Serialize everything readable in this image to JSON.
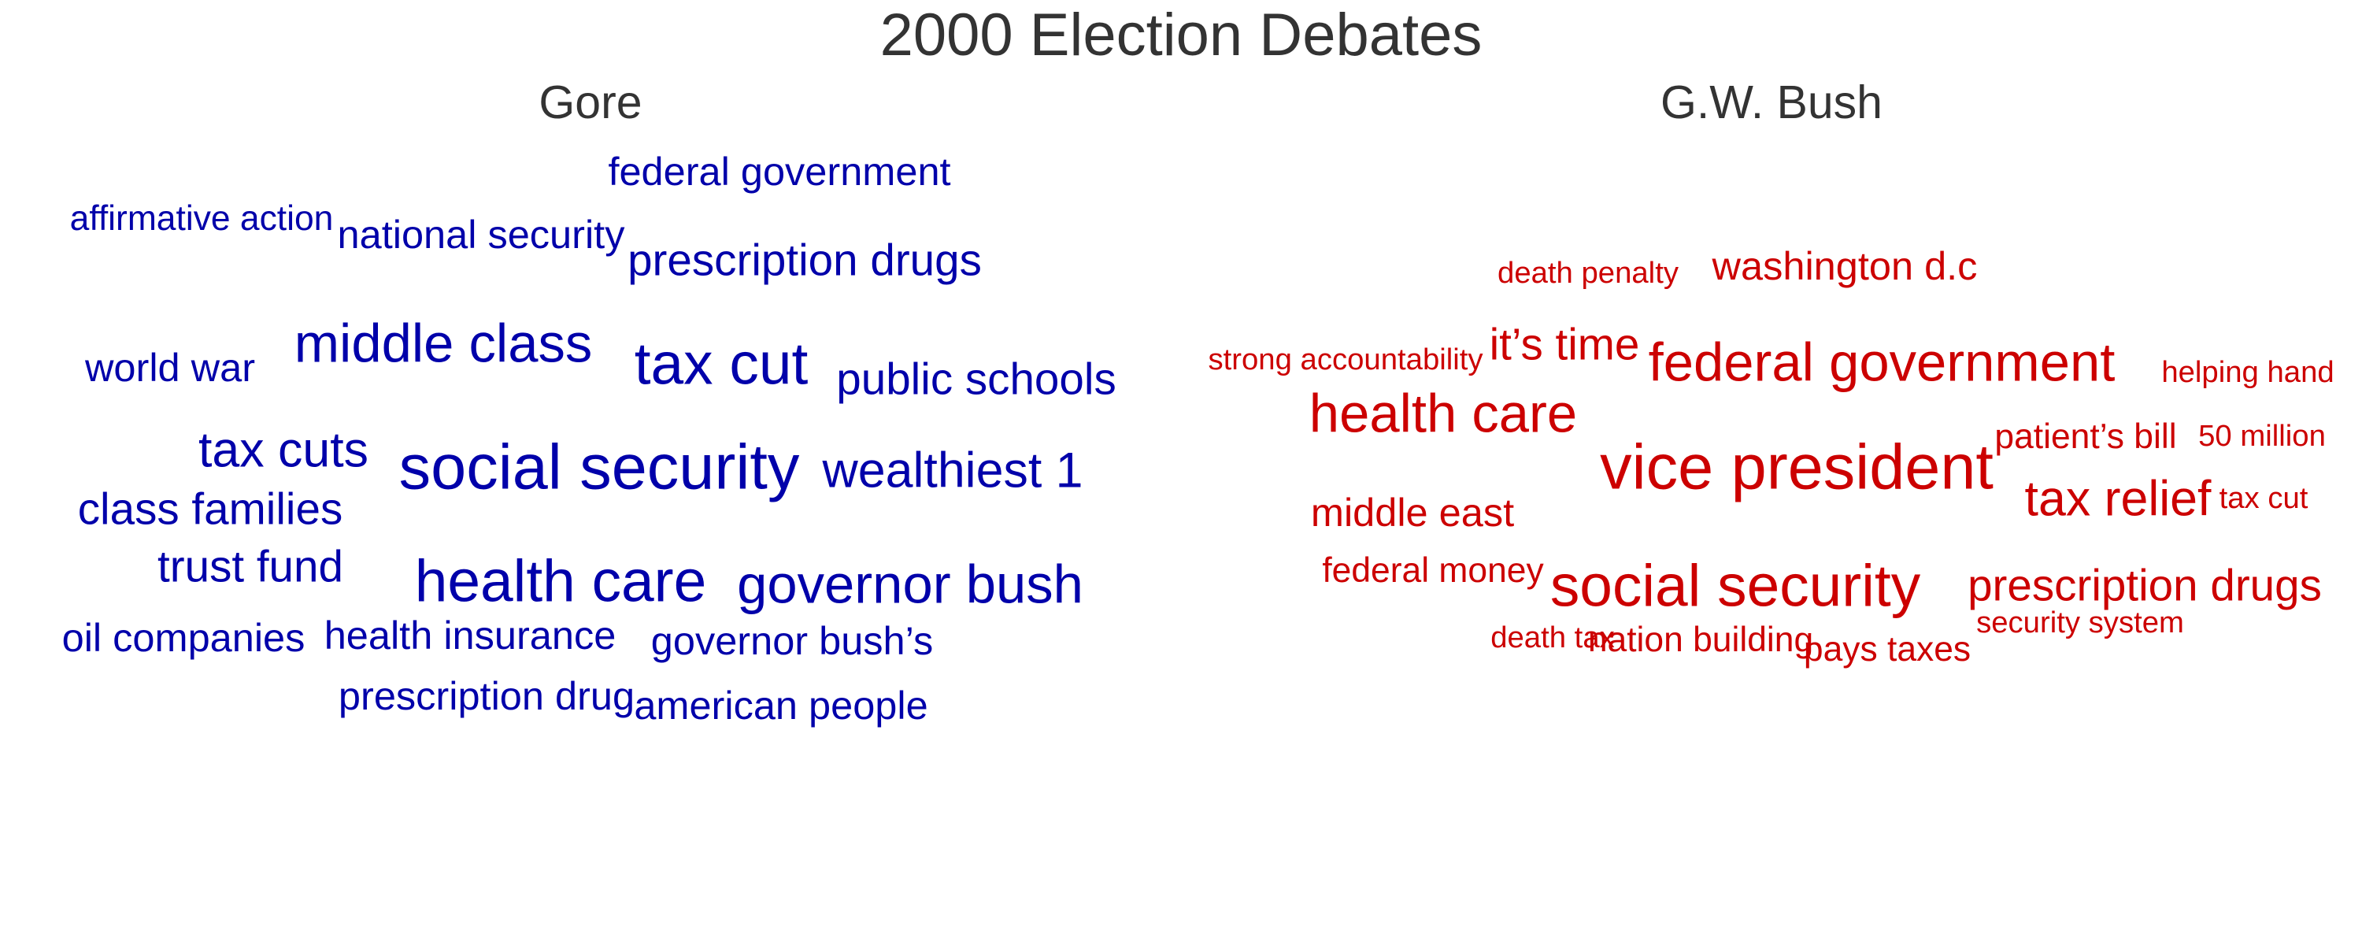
{
  "chart_data": {
    "type": "wordcloud",
    "title": "2000 Election Debates",
    "panels": [
      {
        "name": "Gore",
        "color": "#0000aa",
        "words": [
          {
            "text": "social security",
            "weight": 10
          },
          {
            "text": "tax cut",
            "weight": 9
          },
          {
            "text": "health care",
            "weight": 9
          },
          {
            "text": "middle class",
            "weight": 8
          },
          {
            "text": "governor bush",
            "weight": 8
          },
          {
            "text": "wealthiest 1",
            "weight": 7
          },
          {
            "text": "tax cuts",
            "weight": 7
          },
          {
            "text": "public schools",
            "weight": 6
          },
          {
            "text": "prescription drugs",
            "weight": 6
          },
          {
            "text": "class families",
            "weight": 6
          },
          {
            "text": "trust fund",
            "weight": 6
          },
          {
            "text": "national security",
            "weight": 5
          },
          {
            "text": "federal government",
            "weight": 5
          },
          {
            "text": "health insurance",
            "weight": 5
          },
          {
            "text": "governor bush’s",
            "weight": 5
          },
          {
            "text": "world war",
            "weight": 5
          },
          {
            "text": "prescription drug",
            "weight": 5
          },
          {
            "text": "american people",
            "weight": 5
          },
          {
            "text": "oil companies",
            "weight": 5
          },
          {
            "text": "affirmative action",
            "weight": 4
          }
        ]
      },
      {
        "name": "G.W. Bush",
        "color": "#cc0000",
        "words": [
          {
            "text": "vice president",
            "weight": 10
          },
          {
            "text": "social security",
            "weight": 9
          },
          {
            "text": "federal government",
            "weight": 8
          },
          {
            "text": "health care",
            "weight": 8
          },
          {
            "text": "tax relief",
            "weight": 7
          },
          {
            "text": "prescription drugs",
            "weight": 6
          },
          {
            "text": "it’s time",
            "weight": 6
          },
          {
            "text": "middle east",
            "weight": 5
          },
          {
            "text": "washington d.c",
            "weight": 5
          },
          {
            "text": "federal money",
            "weight": 4
          },
          {
            "text": "nation building",
            "weight": 4
          },
          {
            "text": "pays taxes",
            "weight": 4
          },
          {
            "text": "patient’s bill",
            "weight": 4
          },
          {
            "text": "helping hand",
            "weight": 3
          },
          {
            "text": "50 million",
            "weight": 3
          },
          {
            "text": "security system",
            "weight": 3
          },
          {
            "text": "death penalty",
            "weight": 3
          },
          {
            "text": "strong accountability",
            "weight": 3
          },
          {
            "text": "tax cut",
            "weight": 3
          },
          {
            "text": "death tax",
            "weight": 3
          }
        ]
      }
    ]
  }
}
